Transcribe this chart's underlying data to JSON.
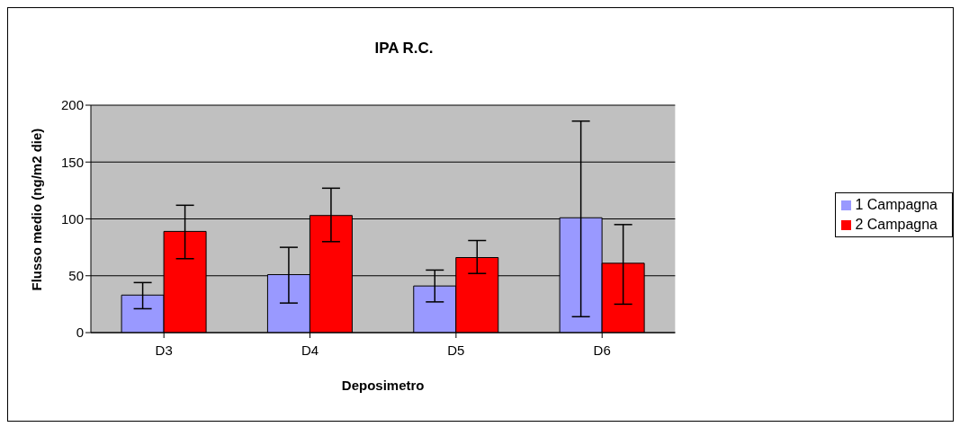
{
  "chart_data": {
    "type": "bar",
    "title": "IPA R.C.",
    "xlabel": "Deposimetro",
    "ylabel": "Flusso medio (ng/m2 die)",
    "categories": [
      "D3",
      "D4",
      "D5",
      "D6"
    ],
    "series": [
      {
        "name": "1 Campagna",
        "color": "#9999ff",
        "values": [
          33,
          51,
          41,
          101
        ],
        "errors": [
          [
            21,
            44
          ],
          [
            26,
            75
          ],
          [
            27,
            55
          ],
          [
            14,
            186
          ]
        ]
      },
      {
        "name": "2 Campagna",
        "color": "#ff0000",
        "values": [
          89,
          103,
          66,
          61
        ],
        "errors": [
          [
            65,
            112
          ],
          [
            80,
            127
          ],
          [
            52,
            81
          ],
          [
            25,
            95
          ]
        ]
      }
    ],
    "ylim": [
      0,
      200
    ],
    "yticks": [
      0,
      50,
      100,
      150,
      200
    ],
    "grid": "y",
    "legend": "right"
  }
}
